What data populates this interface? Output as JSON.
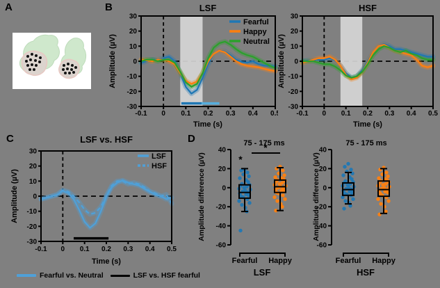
{
  "figure": {
    "bg": "#808080",
    "panel_labels": {
      "a": "A",
      "b": "B",
      "c": "C",
      "d": "D"
    }
  },
  "colors": {
    "fearful_blue": "#1f77b4",
    "happy_orange": "#ff7f0e",
    "neutral_green": "#2ca02c",
    "light_blue": "#4fa0d8",
    "sig_light_blue": "#56aedd",
    "band_gray": "rgba(214,214,214,0.92)",
    "axis_black": "#000000"
  },
  "bottom_legend": {
    "items": [
      {
        "label": "Fearful vs. Neutral",
        "color": "#4fa0d8"
      },
      {
        "label": "LSF vs. HSF fearful",
        "color": "#000000"
      }
    ]
  },
  "chart_data": [
    {
      "id": "b_lsf",
      "type": "line",
      "title": "LSF",
      "xlabel": "Time (s)",
      "ylabel": "Amplitude (µV)",
      "xlim": [
        -0.1,
        0.5
      ],
      "ylim": [
        -30,
        30
      ],
      "xticks": [
        -0.1,
        0,
        0.1,
        0.2,
        0.3,
        0.4,
        0.5
      ],
      "xtick_labels": [
        "-0.1",
        "0",
        "0.1",
        "0.2",
        "0.3",
        "0.4",
        "0.5"
      ],
      "yticks": [
        30,
        20,
        10,
        0,
        -10,
        -20,
        -30
      ],
      "ytick_labels": [
        "30",
        "20",
        "10",
        "0",
        "-10",
        "-20",
        "-30"
      ],
      "shaded_window": [
        0.075,
        0.175
      ],
      "x": [
        -0.1,
        -0.075,
        -0.05,
        -0.025,
        0,
        0.025,
        0.05,
        0.075,
        0.1,
        0.125,
        0.15,
        0.175,
        0.2,
        0.225,
        0.25,
        0.275,
        0.3,
        0.325,
        0.35,
        0.375,
        0.4,
        0.425,
        0.45,
        0.475,
        0.5
      ],
      "series": [
        {
          "name": "Fearful",
          "color": "#1f77b4",
          "dash": false,
          "values": [
            -1,
            0,
            1,
            1,
            2,
            3,
            0,
            -8,
            -17,
            -21.5,
            -19,
            -11,
            -2,
            5,
            7,
            6.5,
            4,
            1,
            -0.5,
            -1,
            0,
            -2,
            -3,
            -3,
            -3.5
          ]
        },
        {
          "name": "Happy",
          "color": "#ff7f0e",
          "dash": false,
          "values": [
            1,
            0.5,
            0,
            1,
            1,
            0,
            -2,
            -8,
            -13,
            -15,
            -13.5,
            -8,
            0,
            5,
            7,
            6,
            3,
            0,
            -2,
            -3,
            -3.5,
            -4,
            -5,
            -6,
            -6.5
          ]
        },
        {
          "name": "Neutral",
          "color": "#2ca02c",
          "dash": false,
          "values": [
            0,
            1,
            1,
            0,
            1,
            1,
            -1,
            -7,
            -14,
            -17,
            -15,
            -8,
            2,
            9,
            12,
            13,
            11,
            8,
            5.5,
            4,
            3,
            1,
            -1,
            -3,
            -4.5
          ]
        }
      ],
      "legend": true,
      "sig_bars": [
        {
          "color": "#1f77b4",
          "range": [
            0.08,
            0.175
          ],
          "level": -28
        },
        {
          "color": "#56aedd",
          "range": [
            0.17,
            0.25
          ],
          "level": -28
        }
      ]
    },
    {
      "id": "b_hsf",
      "type": "line",
      "title": "HSF",
      "xlabel": "Time (s)",
      "ylabel": "Amplitude (µV)",
      "xlim": [
        -0.1,
        0.5
      ],
      "ylim": [
        -30,
        30
      ],
      "xticks": [
        -0.1,
        0,
        0.1,
        0.2,
        0.3,
        0.4,
        0.5
      ],
      "xtick_labels": [
        "-0.1",
        "0",
        "0.1",
        "0.2",
        "0.3",
        "0.4",
        "0.5"
      ],
      "yticks": [
        30,
        20,
        10,
        0,
        -10,
        -20,
        -30
      ],
      "ytick_labels": [
        "30",
        "20",
        "10",
        "0",
        "-10",
        "-20",
        "-30"
      ],
      "shaded_window": [
        0.075,
        0.175
      ],
      "x": [
        -0.1,
        -0.075,
        -0.05,
        -0.025,
        0,
        0.025,
        0.05,
        0.075,
        0.1,
        0.125,
        0.15,
        0.175,
        0.2,
        0.225,
        0.25,
        0.275,
        0.3,
        0.325,
        0.35,
        0.375,
        0.4,
        0.425,
        0.45,
        0.475,
        0.5
      ],
      "series": [
        {
          "name": "Fearful",
          "color": "#1f77b4",
          "dash": false,
          "values": [
            0,
            0.5,
            1,
            1,
            1,
            2,
            0.5,
            -3,
            -8,
            -11,
            -10,
            -6,
            0,
            6,
            10,
            11.5,
            10,
            8,
            8,
            7,
            6,
            5,
            4,
            3,
            3
          ]
        },
        {
          "name": "Happy",
          "color": "#ff7f0e",
          "dash": false,
          "values": [
            -1,
            0,
            1,
            2,
            2,
            3,
            1,
            -3,
            -9,
            -12,
            -11,
            -7,
            -1,
            6,
            10,
            11,
            9,
            7,
            6,
            5,
            4,
            1,
            -3,
            -4,
            -3
          ]
        },
        {
          "name": "Neutral",
          "color": "#2ca02c",
          "dash": false,
          "values": [
            0,
            0,
            0,
            -1,
            -2,
            -2,
            -3.5,
            -6,
            -9.5,
            -11,
            -10,
            -7,
            -2,
            4,
            8,
            10,
            9,
            7,
            6,
            7,
            5,
            4,
            2,
            1,
            1
          ]
        }
      ],
      "legend": false,
      "sig_bars": []
    },
    {
      "id": "c",
      "type": "line",
      "title": "LSF vs. HSF",
      "xlabel": "Time (s)",
      "ylabel": "Amplitude (µV)",
      "xlim": [
        -0.1,
        0.5
      ],
      "ylim": [
        -30,
        30
      ],
      "xticks": [
        -0.1,
        0,
        0.1,
        0.2,
        0.3,
        0.4,
        0.5
      ],
      "xtick_labels": [
        "-0.1",
        "0",
        "0.1",
        "0.2",
        "0.3",
        "0.4",
        "0.5"
      ],
      "yticks": [
        30,
        20,
        10,
        0,
        -10,
        -20,
        -30
      ],
      "ytick_labels": [
        "30",
        "20",
        "10",
        "0",
        "-10",
        "-20",
        "-30"
      ],
      "shaded_window": null,
      "x": [
        -0.1,
        -0.075,
        -0.05,
        -0.025,
        0,
        0.025,
        0.05,
        0.075,
        0.1,
        0.125,
        0.15,
        0.175,
        0.2,
        0.225,
        0.25,
        0.275,
        0.3,
        0.325,
        0.35,
        0.375,
        0.4,
        0.425,
        0.45,
        0.475,
        0.5
      ],
      "series": [
        {
          "name": "LSF",
          "color": "#4fa0d8",
          "dash": false,
          "values": [
            -2,
            -1,
            0,
            1,
            3.5,
            2,
            -2,
            -9,
            -17,
            -21,
            -18,
            -10,
            0,
            6,
            9,
            10.5,
            9,
            8,
            7,
            5,
            3,
            1,
            0,
            -2,
            -1
          ]
        },
        {
          "name": "HSF",
          "color": "#4fa0d8",
          "dash": true,
          "values": [
            -2,
            -1,
            0,
            1,
            4,
            3,
            0,
            -4,
            -9,
            -12,
            -11,
            -7,
            0,
            7,
            10,
            10,
            8,
            9,
            8,
            6,
            3,
            2,
            0,
            1,
            -5
          ]
        }
      ],
      "legend": true,
      "sig_bars": [
        {
          "color": "#000000",
          "range": [
            0.05,
            0.21
          ],
          "level": -28
        }
      ]
    },
    {
      "id": "d_lsf",
      "type": "scatter-box",
      "title": "75 - 175 ms",
      "ylabel": "Amplitude difference (µV)",
      "group_label": "LSF",
      "ylim": [
        -60,
        40
      ],
      "yticks": [
        40,
        20,
        0,
        -20,
        -40,
        -60
      ],
      "ytick_labels": [
        "40",
        "20",
        "0",
        "-20",
        "-40",
        "-60"
      ],
      "categories": [
        "Fearful",
        "Happy"
      ],
      "series": [
        {
          "name": "Fearful",
          "color": "#1f77b4",
          "star_value": 29,
          "points": [
            19,
            18,
            16,
            14,
            12,
            10,
            8,
            6,
            4,
            3,
            2,
            1,
            0,
            -1,
            -2,
            -3,
            -4,
            -5,
            -6,
            -7,
            -8,
            -9,
            -10,
            -12,
            -14,
            -16,
            -18,
            -21,
            -25,
            -45
          ],
          "box": {
            "low": -25,
            "q1": -11,
            "median": -5,
            "q3": 3,
            "high": 20
          }
        },
        {
          "name": "Happy",
          "color": "#ff7f0e",
          "points": [
            22,
            20,
            18,
            15,
            13,
            11,
            10,
            9,
            8,
            7,
            6,
            5,
            4,
            3,
            2,
            1,
            0,
            -1,
            -2,
            -3,
            -4,
            -5,
            -6,
            -8,
            -10,
            -12,
            -14,
            -17,
            -20,
            -24
          ],
          "box": {
            "low": -24,
            "q1": -5,
            "median": 1,
            "q3": 8,
            "high": 21
          }
        }
      ],
      "significance": {
        "show": true,
        "symbol": "*"
      }
    },
    {
      "id": "d_hsf",
      "type": "scatter-box",
      "title": "75 - 175 ms",
      "ylabel": "Amplitude difference (µV)",
      "group_label": "HSF",
      "ylim": [
        -60,
        40
      ],
      "yticks": [
        40,
        20,
        0,
        -20,
        -40,
        -60
      ],
      "ytick_labels": [
        "40",
        "20",
        "0",
        "-20",
        "-40",
        "-60"
      ],
      "categories": [
        "Fearful",
        "Happy"
      ],
      "series": [
        {
          "name": "Fearful",
          "color": "#1f77b4",
          "points": [
            25,
            22,
            19,
            17,
            15,
            13,
            11,
            9,
            7,
            6,
            5,
            4,
            3,
            2,
            1,
            0,
            -1,
            -2,
            -3,
            -4,
            -5,
            -6,
            -7,
            -8,
            -10,
            -12,
            -14,
            -16,
            -19,
            -22
          ],
          "box": {
            "low": -17,
            "q1": -8,
            "median": -2,
            "q3": 5,
            "high": 16
          }
        },
        {
          "name": "Happy",
          "color": "#ff7f0e",
          "points": [
            21,
            19,
            16,
            14,
            12,
            10,
            9,
            8,
            7,
            6,
            5,
            4,
            3,
            2,
            1,
            0,
            -1,
            -2,
            -3,
            -4,
            -5,
            -6,
            -8,
            -10,
            -12,
            -14,
            -17,
            -20,
            -25,
            -28
          ],
          "box": {
            "low": -27,
            "q1": -9,
            "median": -2,
            "q3": 7,
            "high": 20
          }
        }
      ],
      "significance": {
        "show": false,
        "symbol": ""
      }
    }
  ]
}
